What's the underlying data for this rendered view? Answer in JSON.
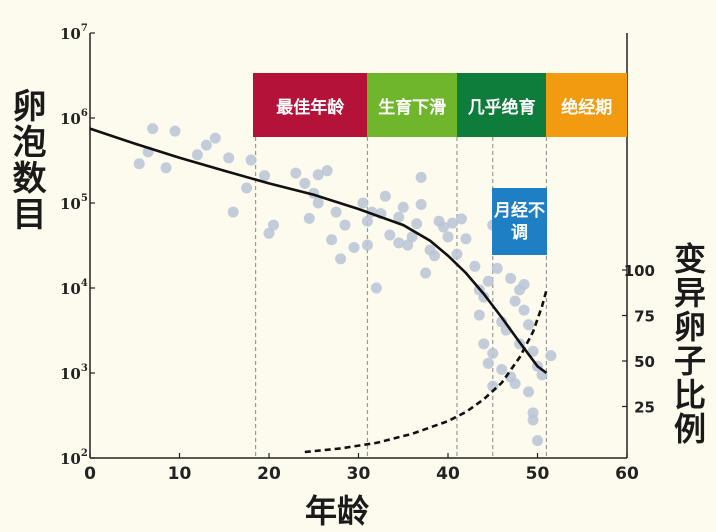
{
  "chart_data": {
    "type": "scatter",
    "xlabel": "年龄",
    "ylabel": "卵泡数目",
    "y2label": "变异卵子比例",
    "x_range": [
      0,
      60
    ],
    "x_ticks": [
      0,
      10,
      20,
      30,
      40,
      50,
      60
    ],
    "y_scale": "log",
    "y_range_exponent": [
      2,
      7
    ],
    "y_tick_labels": [
      {
        "base": "10",
        "exp": "2",
        "value": 100
      },
      {
        "base": "10",
        "exp": "3",
        "value": 1000
      },
      {
        "base": "10",
        "exp": "4",
        "value": 10000
      },
      {
        "base": "10",
        "exp": "5",
        "value": 100000
      },
      {
        "base": "10",
        "exp": "6",
        "value": 1000000
      },
      {
        "base": "10",
        "exp": "7",
        "value": 10000000
      }
    ],
    "y2_ticks": [
      25,
      50,
      75,
      100
    ],
    "y2_range": [
      0,
      100
    ],
    "stages": [
      {
        "label": "最佳年龄",
        "x_start": 18.5,
        "x_end": 31,
        "color": "#b5123a"
      },
      {
        "label": "生育下滑",
        "x_start": 31,
        "x_end": 41,
        "color": "#6fb62c"
      },
      {
        "label": "几乎绝育",
        "x_start": 41,
        "x_end": 51,
        "color": "#0e7c3b"
      },
      {
        "label": "绝经期",
        "x_start": 51,
        "x_end": 60,
        "color": "#f29a10"
      }
    ],
    "callout": {
      "label": "月经不调",
      "color": "#1f7fc4"
    },
    "guide_lines_x": [
      18.5,
      31,
      41,
      45,
      51
    ],
    "series": [
      {
        "kind": "points",
        "axis": "left",
        "color": "#b9c4d6",
        "points": [
          [
            5.5,
            290000
          ],
          [
            6.5,
            400000
          ],
          [
            7,
            750000
          ],
          [
            8.5,
            260000
          ],
          [
            9.5,
            700000
          ],
          [
            12,
            370000
          ],
          [
            13,
            480000
          ],
          [
            14,
            580000
          ],
          [
            15.5,
            340000
          ],
          [
            16,
            78000
          ],
          [
            17.5,
            150000
          ],
          [
            18,
            320000
          ],
          [
            19.5,
            210000
          ],
          [
            20.5,
            55000
          ],
          [
            20,
            44000
          ],
          [
            23,
            225000
          ],
          [
            24,
            170000
          ],
          [
            24.5,
            66000
          ],
          [
            25,
            130000
          ],
          [
            25.5,
            100000
          ],
          [
            25.5,
            215000
          ],
          [
            26.5,
            240000
          ],
          [
            27,
            37000
          ],
          [
            27.5,
            78000
          ],
          [
            28,
            22000
          ],
          [
            28.5,
            55000
          ],
          [
            29.5,
            30000
          ],
          [
            30.5,
            100000
          ],
          [
            31,
            61000
          ],
          [
            31,
            32000
          ],
          [
            31.5,
            78000
          ],
          [
            32,
            10000
          ],
          [
            32.5,
            75000
          ],
          [
            33,
            120000
          ],
          [
            33.5,
            42000
          ],
          [
            34.5,
            34000
          ],
          [
            34.5,
            68000
          ],
          [
            35,
            89000
          ],
          [
            35.5,
            32000
          ],
          [
            36,
            40000
          ],
          [
            36.5,
            57000
          ],
          [
            37,
            96000
          ],
          [
            37,
            200000
          ],
          [
            37.5,
            15000
          ],
          [
            38,
            28000
          ],
          [
            38.5,
            24000
          ],
          [
            39,
            61000
          ],
          [
            39.5,
            52000
          ],
          [
            40,
            40000
          ],
          [
            40.5,
            58000
          ],
          [
            41,
            25000
          ],
          [
            41.5,
            65000
          ],
          [
            42,
            38000
          ],
          [
            43,
            18000
          ],
          [
            43.5,
            9500
          ],
          [
            43.5,
            4800
          ],
          [
            44,
            7800
          ],
          [
            44.5,
            12000
          ],
          [
            45,
            55000
          ],
          [
            45.5,
            17000
          ],
          [
            44,
            2200
          ],
          [
            45,
            1700
          ],
          [
            44.5,
            1300
          ],
          [
            45,
            700
          ],
          [
            46,
            1100
          ],
          [
            46,
            4000
          ],
          [
            46.5,
            3200
          ],
          [
            47,
            13000
          ],
          [
            47.5,
            7000
          ],
          [
            48,
            9500
          ],
          [
            47,
            900
          ],
          [
            47.5,
            750
          ],
          [
            48,
            2200
          ],
          [
            48.5,
            5500
          ],
          [
            48.5,
            11000
          ],
          [
            49,
            3700
          ],
          [
            49.5,
            1800
          ],
          [
            50,
            1200
          ],
          [
            49,
            600
          ],
          [
            49.5,
            340
          ],
          [
            49.5,
            280
          ],
          [
            50.5,
            950
          ],
          [
            51.5,
            1600
          ],
          [
            50,
            160
          ]
        ]
      },
      {
        "kind": "curve",
        "axis": "left",
        "style": "solid",
        "points": [
          [
            0,
            750000
          ],
          [
            5,
            500000
          ],
          [
            10,
            340000
          ],
          [
            15,
            240000
          ],
          [
            20,
            170000
          ],
          [
            25,
            125000
          ],
          [
            30,
            85000
          ],
          [
            35,
            55000
          ],
          [
            38,
            36000
          ],
          [
            40,
            24000
          ],
          [
            42,
            15000
          ],
          [
            44,
            8500
          ],
          [
            46,
            4500
          ],
          [
            48,
            2300
          ],
          [
            50,
            1200
          ],
          [
            51,
            1000
          ]
        ]
      },
      {
        "kind": "curve",
        "axis": "right",
        "style": "dashed",
        "points": [
          [
            24,
            0
          ],
          [
            28,
            2
          ],
          [
            32,
            5
          ],
          [
            36,
            10
          ],
          [
            40,
            17
          ],
          [
            42,
            22
          ],
          [
            44,
            29
          ],
          [
            46,
            38
          ],
          [
            48,
            52
          ],
          [
            49.5,
            66
          ],
          [
            50.5,
            80
          ],
          [
            51,
            89
          ]
        ]
      }
    ]
  }
}
